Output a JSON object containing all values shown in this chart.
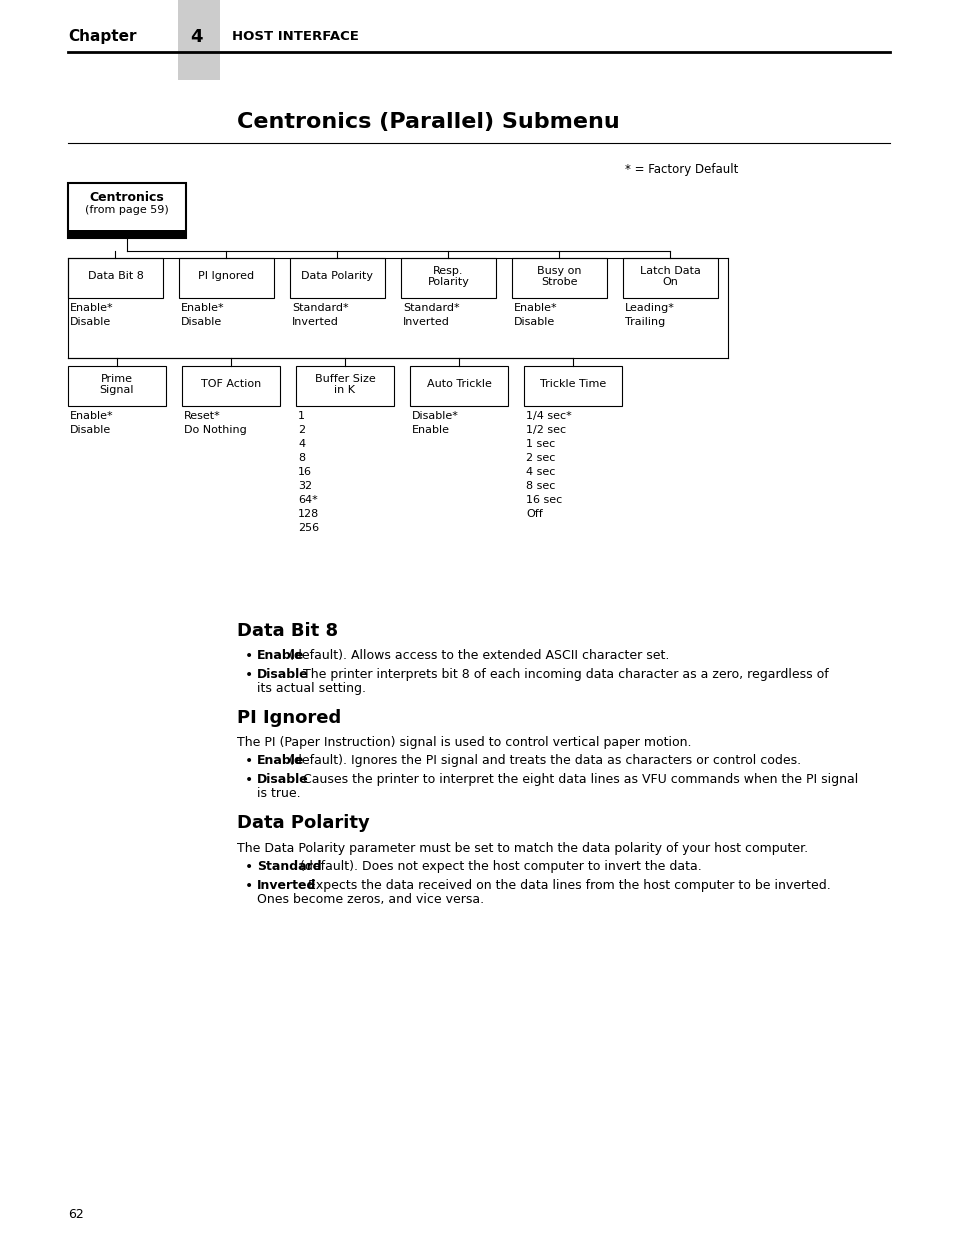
{
  "page_bg": "#ffffff",
  "chapter_label": "Chapter",
  "chapter_num": "4",
  "chapter_title": "HOST INTERFACE",
  "section_title": "Centronics (Parallel) Submenu",
  "factory_default_note": "* = Factory Default",
  "centronics_box_line1": "Centronics",
  "centronics_box_line2": "(from page 59)",
  "row1_boxes": [
    "Data Bit 8",
    "PI Ignored",
    "Data Polarity",
    "Resp.\nPolarity",
    "Busy on\nStrobe",
    "Latch Data\nOn"
  ],
  "row1_values": [
    [
      "Enable*",
      "Disable"
    ],
    [
      "Enable*",
      "Disable"
    ],
    [
      "Standard*",
      "Inverted"
    ],
    [
      "Standard*",
      "Inverted"
    ],
    [
      "Enable*",
      "Disable"
    ],
    [
      "Leading*",
      "Trailing"
    ]
  ],
  "row2_boxes": [
    "Prime\nSignal",
    "TOF Action",
    "Buffer Size\nin K",
    "Auto Trickle",
    "Trickle Time"
  ],
  "row2_values": [
    [
      "Enable*",
      "Disable"
    ],
    [
      "Reset*",
      "Do Nothing"
    ],
    [
      "1",
      "2",
      "4",
      "8",
      "16",
      "32",
      "64*",
      "128",
      "256"
    ],
    [
      "Disable*",
      "Enable"
    ],
    [
      "1/4 sec*",
      "1/2 sec",
      "1 sec",
      "2 sec",
      "4 sec",
      "8 sec",
      "16 sec",
      "Off"
    ]
  ],
  "sec1_title": "Data Bit 8",
  "sec1_body": "",
  "sec1_bullets": [
    {
      "bold": "Enable",
      "rest": " (default). Allows access to the extended ASCII character set."
    },
    {
      "bold": "Disable",
      "rest": ". The printer interprets bit 8 of each incoming data character as a zero, regardless of its actual setting."
    }
  ],
  "sec2_title": "PI Ignored",
  "sec2_body": "The PI (Paper Instruction) signal is used to control vertical paper motion.",
  "sec2_bullets": [
    {
      "bold": "Enable",
      "rest": " (default). Ignores the PI signal and treats the data as characters or control codes."
    },
    {
      "bold": "Disable",
      "rest": ". Causes the printer to interpret the eight data lines as VFU commands when the PI signal is true."
    }
  ],
  "sec3_title": "Data Polarity",
  "sec3_body": "The Data Polarity parameter must be set to match the data polarity of your host computer.",
  "sec3_bullets": [
    {
      "bold": "Standard",
      "rest": " (default). Does not expect the host computer to invert the data."
    },
    {
      "bold": "Inverted",
      "rest": ". Expects the data received on the data lines from the host computer to be inverted. Ones become zeros, and vice versa."
    }
  ],
  "page_number": "62",
  "gray_tab_color": "#cccccc"
}
